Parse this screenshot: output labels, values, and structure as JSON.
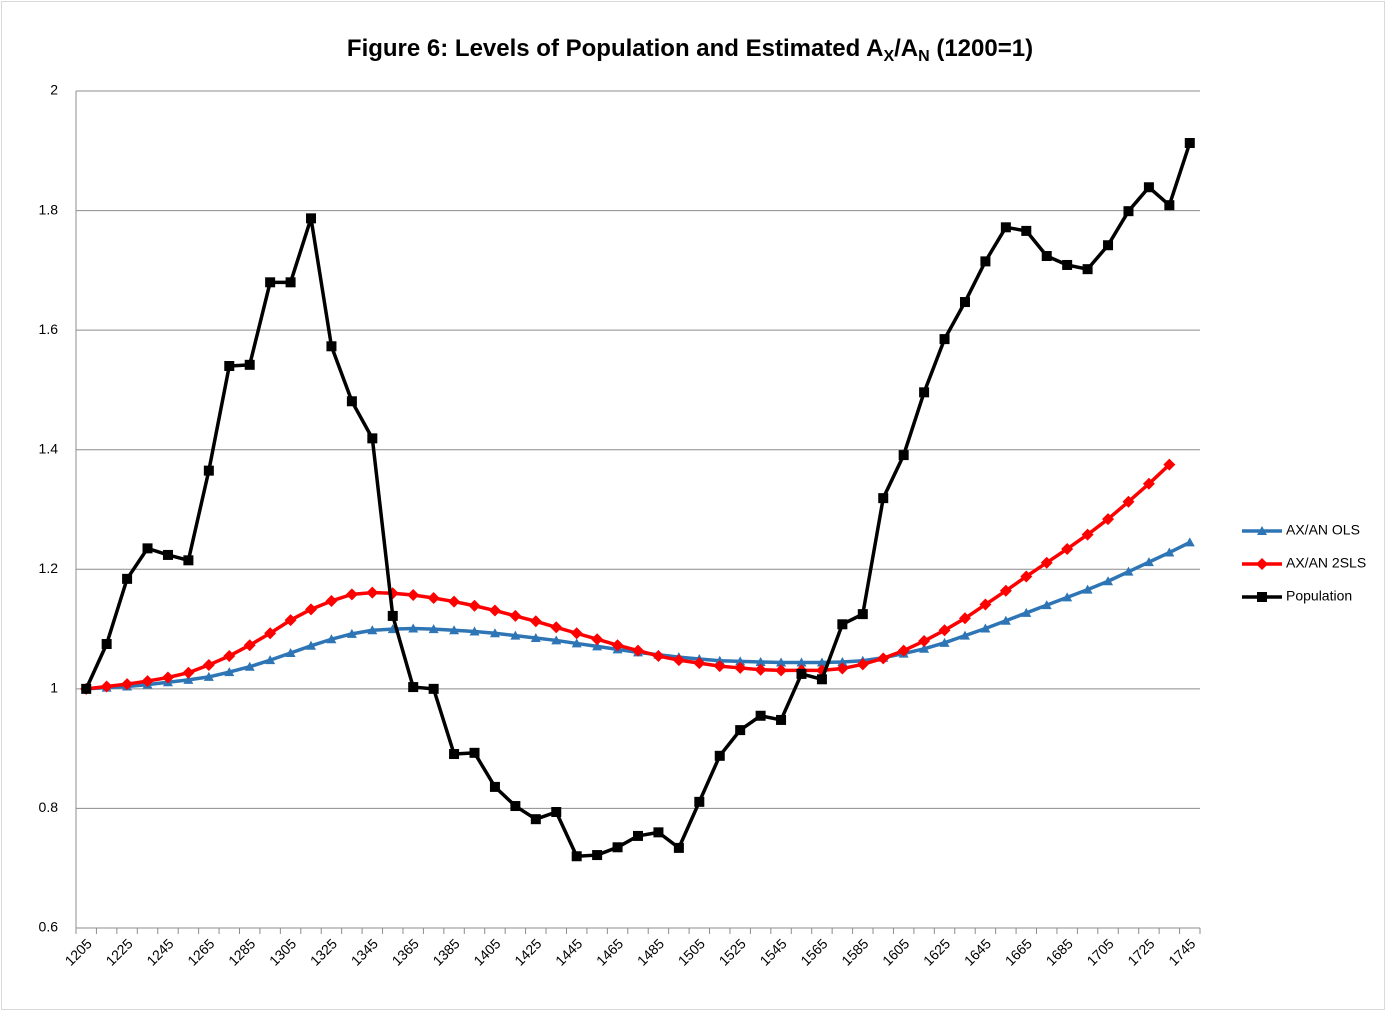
{
  "chart_data": {
    "type": "line",
    "title": [
      "Figure 6: Levels of Population and Estimated A",
      "X",
      "/A",
      "N",
      " (1200=1)"
    ],
    "categories": [
      "1205",
      null,
      "1225",
      null,
      "1245",
      null,
      "1265",
      null,
      "1285",
      null,
      "1305",
      null,
      "1325",
      null,
      "1345",
      null,
      "1365",
      null,
      "1385",
      null,
      "1405",
      null,
      "1425",
      null,
      "1445",
      null,
      "1465",
      null,
      "1485",
      null,
      "1505",
      null,
      "1525",
      null,
      "1545",
      null,
      "1565",
      null,
      "1585",
      null,
      "1605",
      null,
      "1625",
      null,
      "1645",
      null,
      "1665",
      null,
      "1685",
      null,
      "1705",
      null,
      "1725",
      null,
      "1745"
    ],
    "series": [
      {
        "name": "AX/AN OLS",
        "color": "#2e75b6",
        "marker": "triangle",
        "values": [
          1.0,
          1.002,
          1.004,
          1.007,
          1.011,
          1.015,
          1.02,
          1.028,
          1.037,
          1.048,
          1.06,
          1.072,
          1.083,
          1.092,
          1.098,
          1.1,
          1.101,
          1.1,
          1.098,
          1.096,
          1.093,
          1.089,
          1.085,
          1.081,
          1.076,
          1.071,
          1.066,
          1.061,
          1.057,
          1.053,
          1.05,
          1.047,
          1.046,
          1.045,
          1.044,
          1.044,
          1.044,
          1.045,
          1.047,
          1.052,
          1.059,
          1.067,
          1.077,
          1.089,
          1.101,
          1.114,
          1.127,
          1.14,
          1.153,
          1.166,
          1.18,
          1.196,
          1.212,
          1.228,
          1.245
        ]
      },
      {
        "name": "AX/AN 2SLS",
        "color": "#ff0000",
        "marker": "diamond",
        "values": [
          1.0,
          1.004,
          1.008,
          1.013,
          1.019,
          1.027,
          1.04,
          1.055,
          1.073,
          1.093,
          1.115,
          1.133,
          1.147,
          1.158,
          1.161,
          1.16,
          1.157,
          1.152,
          1.146,
          1.139,
          1.131,
          1.122,
          1.113,
          1.103,
          1.093,
          1.083,
          1.073,
          1.064,
          1.055,
          1.048,
          1.043,
          1.038,
          1.035,
          1.032,
          1.031,
          1.031,
          1.031,
          1.034,
          1.041,
          1.051,
          1.064,
          1.08,
          1.098,
          1.118,
          1.141,
          1.164,
          1.188,
          1.211,
          1.234,
          1.258,
          1.284,
          1.313,
          1.343,
          1.375,
          null
        ]
      },
      {
        "name": "Population",
        "color": "#000000",
        "marker": "square",
        "values": [
          1.0,
          1.075,
          1.184,
          1.235,
          1.224,
          1.215,
          1.365,
          1.54,
          1.542,
          1.68,
          1.68,
          1.787,
          1.573,
          1.481,
          1.419,
          1.122,
          1.003,
          1.0,
          0.891,
          0.893,
          0.836,
          0.804,
          0.782,
          0.794,
          0.72,
          0.722,
          0.735,
          0.754,
          0.76,
          0.734,
          0.811,
          0.888,
          0.931,
          0.955,
          0.948,
          1.025,
          1.016,
          1.108,
          1.125,
          1.319,
          1.391,
          1.496,
          1.585,
          1.647,
          1.715,
          1.772,
          1.766,
          1.724,
          1.709,
          1.702,
          1.742,
          1.799,
          1.839,
          1.809,
          1.913
        ]
      }
    ],
    "ylim": [
      0.6,
      2
    ],
    "yticks": [
      0.6,
      0.8,
      1,
      1.2,
      1.4,
      1.6,
      1.8,
      2
    ],
    "grid": true,
    "legend": "right"
  }
}
